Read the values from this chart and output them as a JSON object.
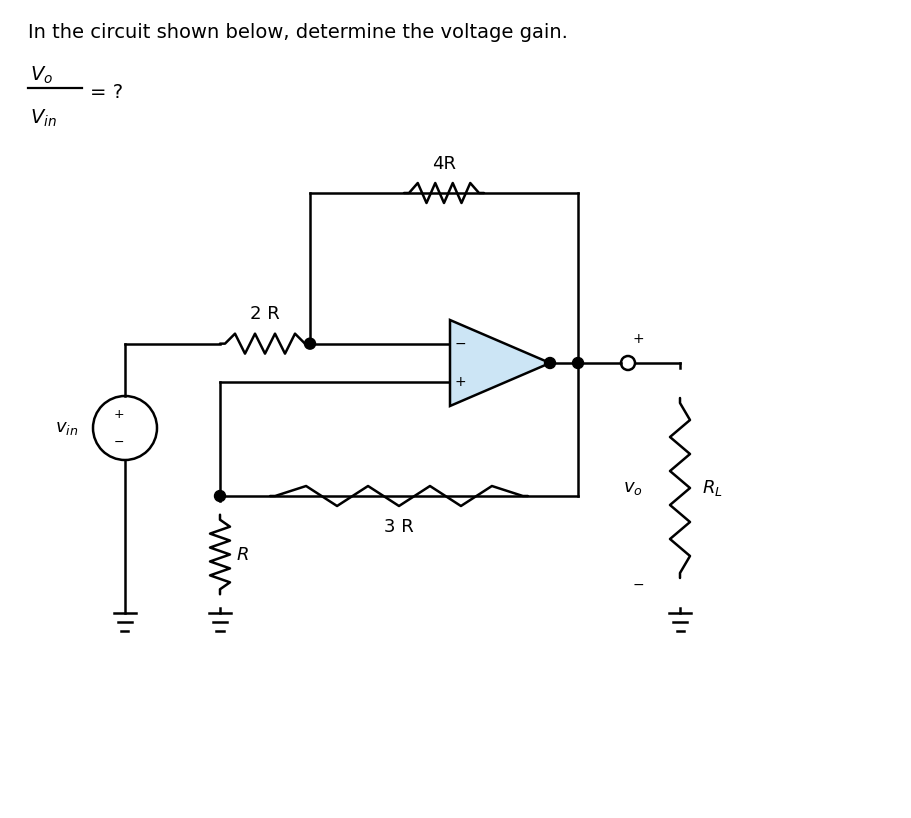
{
  "title": "In the circuit shown below, determine the voltage gain.",
  "bg_color": "#ffffff",
  "line_color": "#000000",
  "opamp_fill": "#cce5f5",
  "text_color": "#000000",
  "lw": 1.8
}
